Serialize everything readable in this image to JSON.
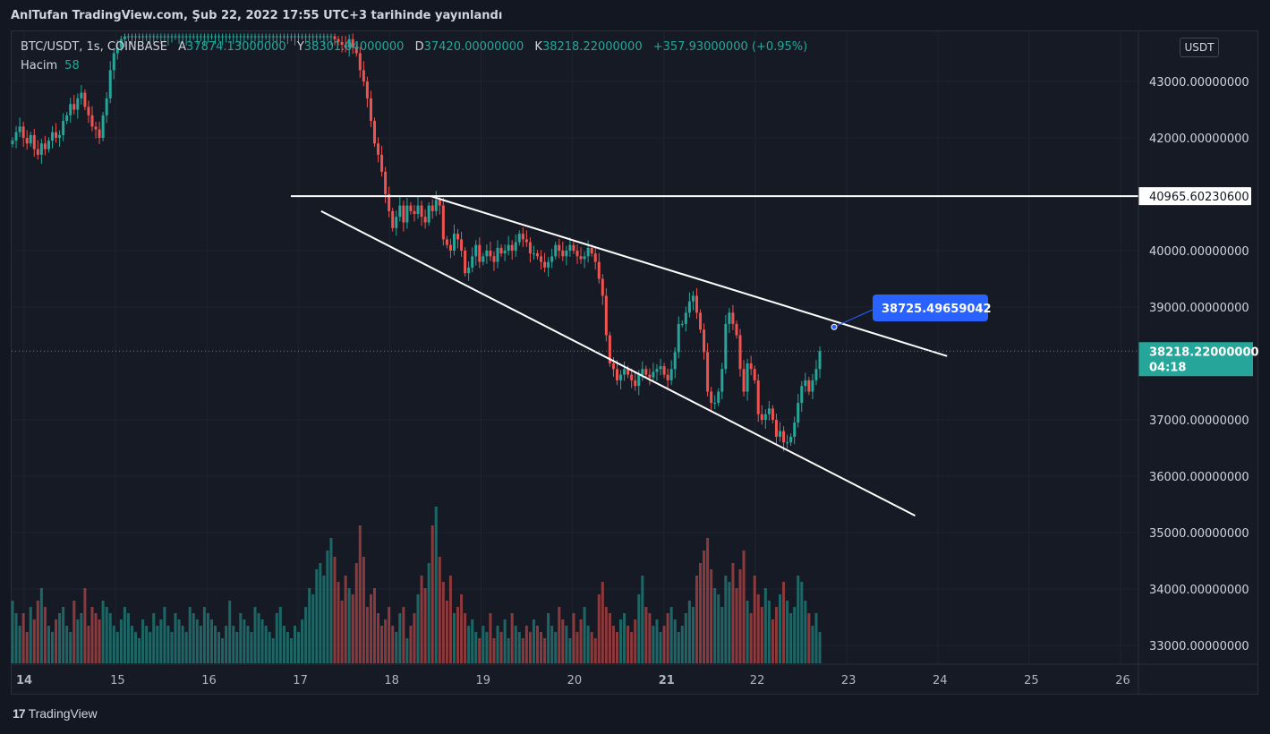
{
  "header": {
    "title": "AnlTufan TradingView.com, Şub 22, 2022 17:55 UTC+3 tarihinde yayınlandı"
  },
  "legend": {
    "symbol": "BTC/USDT, 1s, COINBASE",
    "o_label": "A",
    "o_value": "37874.13000000",
    "h_label": "Y",
    "h_value": "38301.04000000",
    "l_label": "D",
    "l_value": "37420.00000000",
    "c_label": "K",
    "c_value": "38218.22000000",
    "change": "+357.93000000 (+0.95%)",
    "volume_label": "Hacim",
    "volume_value": "58"
  },
  "currency_button": "USDT",
  "footer": {
    "brand": "TradingView",
    "logo": "17"
  },
  "colors": {
    "up": "#26a69a",
    "down": "#ef5350",
    "background": "#131722",
    "grid": "#1f2330",
    "line": "#ffffff",
    "callout": "#2962ff"
  },
  "chart_data": {
    "type": "candlestick",
    "price_axis": {
      "ticks": [
        43000,
        42000,
        40000,
        39000,
        37000,
        36000,
        35000,
        34000,
        33000
      ],
      "tick_labels": [
        "43000.00000000",
        "42000.00000000",
        "40000.00000000",
        "39000.00000000",
        "37000.00000000",
        "36000.00000000",
        "35000.00000000",
        "34000.00000000",
        "33000.00000000"
      ],
      "range": [
        32700,
        43800
      ]
    },
    "time_axis": {
      "labels": [
        "14",
        "15",
        "16",
        "17",
        "18",
        "19",
        "20",
        "21",
        "22",
        "23",
        "24",
        "25",
        "26"
      ],
      "bold_labels": [
        "14",
        "21"
      ]
    },
    "horizontal_line": {
      "price": 40965.6023,
      "label": "40965.60230600"
    },
    "current_price": {
      "price": 38218.22,
      "label": "38218.22000000",
      "countdown": "04:18"
    },
    "callout": {
      "price": 38725.49659042,
      "label": "38725.49659042"
    },
    "trendlines": [
      {
        "from": [
          "18.45",
          40965
        ],
        "to": [
          "24.1",
          38130
        ]
      },
      {
        "from": [
          "17.25",
          40700
        ],
        "to": [
          "23.75",
          35300
        ]
      }
    ],
    "candles_close": [
      41950,
      42100,
      42200,
      42000,
      41900,
      42050,
      41800,
      41700,
      41900,
      41800,
      41950,
      42100,
      42000,
      42050,
      42300,
      42400,
      42600,
      42500,
      42700,
      42800,
      42550,
      42400,
      42200,
      42150,
      42000,
      42400,
      42700,
      43200,
      43500,
      43600,
      43750,
      43800,
      43800,
      43800,
      43800,
      43800,
      43800,
      43800,
      43800,
      43800,
      43800,
      43800,
      43800,
      43800,
      43800,
      43800,
      43800,
      43800,
      43800,
      43800,
      43800,
      43800,
      43800,
      43800,
      43800,
      43800,
      43800,
      43800,
      43800,
      43800,
      43800,
      43800,
      43800,
      43800,
      43800,
      43800,
      43800,
      43800,
      43800,
      43800,
      43800,
      43800,
      43800,
      43800,
      43800,
      43800,
      43800,
      43800,
      43800,
      43800,
      43800,
      43800,
      43800,
      43800,
      43800,
      43800,
      43800,
      43800,
      43800,
      43750,
      43700,
      43650,
      43600,
      43750,
      43600,
      43500,
      43200,
      43000,
      42700,
      42300,
      41900,
      41700,
      41400,
      41000,
      40700,
      40400,
      40600,
      40800,
      40500,
      40800,
      40700,
      40650,
      40800,
      40600,
      40500,
      40800,
      40700,
      40900,
      40800,
      40200,
      40100,
      40000,
      40300,
      40200,
      40000,
      39600,
      39700,
      39900,
      40100,
      39800,
      39900,
      40000,
      39900,
      39800,
      40050,
      39950,
      40000,
      40100,
      40000,
      40150,
      40300,
      40200,
      40150,
      39950,
      39950,
      39900,
      39800,
      39700,
      39800,
      39900,
      40100,
      40000,
      39900,
      40000,
      40100,
      40000,
      39900,
      39850,
      39900,
      40050,
      39950,
      39800,
      39500,
      39200,
      38500,
      38000,
      37900,
      37700,
      37800,
      37900,
      37800,
      37700,
      37600,
      37800,
      37900,
      37800,
      37750,
      37850,
      37900,
      37950,
      37800,
      37700,
      37900,
      38200,
      38700,
      38700,
      38900,
      39100,
      39200,
      38900,
      38600,
      38200,
      37500,
      37300,
      37300,
      37500,
      37900,
      38700,
      38900,
      38700,
      38500,
      37900,
      37500,
      38000,
      37900,
      37700,
      37100,
      37000,
      37100,
      37200,
      37000,
      36700,
      36800,
      36600,
      36600,
      36700,
      36950,
      37300,
      37600,
      37700,
      37500,
      37700,
      37900,
      38218
    ],
    "volume": [
      10,
      8,
      6,
      8,
      5,
      9,
      7,
      10,
      12,
      9,
      6,
      5,
      7,
      8,
      9,
      6,
      5,
      10,
      7,
      8,
      12,
      6,
      9,
      8,
      7,
      10,
      9,
      8,
      6,
      5,
      7,
      9,
      8,
      6,
      5,
      4,
      7,
      6,
      5,
      8,
      6,
      7,
      9,
      6,
      5,
      8,
      7,
      6,
      5,
      9,
      8,
      7,
      6,
      9,
      8,
      7,
      6,
      5,
      4,
      6,
      10,
      6,
      5,
      8,
      7,
      6,
      5,
      9,
      8,
      7,
      6,
      5,
      4,
      8,
      9,
      6,
      5,
      4,
      6,
      5,
      7,
      9,
      12,
      11,
      15,
      16,
      14,
      18,
      20,
      17,
      13,
      10,
      14,
      12,
      11,
      16,
      22,
      17,
      9,
      11,
      12,
      8,
      6,
      7,
      9,
      6,
      5,
      8,
      9,
      4,
      6,
      8,
      11,
      14,
      12,
      16,
      22,
      25,
      17,
      13,
      10,
      14,
      8,
      9,
      11,
      8,
      6,
      7,
      5,
      4,
      6,
      5,
      8,
      4,
      6,
      5,
      7,
      4,
      8,
      6,
      5,
      4,
      6,
      5,
      7,
      6,
      5,
      4,
      8,
      6,
      5,
      9,
      7,
      6,
      4,
      8,
      5,
      7,
      9,
      6,
      5,
      4,
      11,
      13,
      9,
      8,
      6,
      5,
      7,
      8,
      6,
      5,
      7,
      11,
      14,
      9,
      8,
      6,
      7,
      5,
      6,
      8,
      9,
      7,
      5,
      6,
      8,
      10,
      9,
      14,
      16,
      18,
      20,
      15,
      12,
      11,
      9,
      14,
      13,
      16,
      12,
      15,
      18,
      10,
      8,
      14,
      11,
      9,
      12,
      10,
      7,
      9,
      11,
      13,
      10,
      8,
      9,
      14,
      13
    ]
  }
}
